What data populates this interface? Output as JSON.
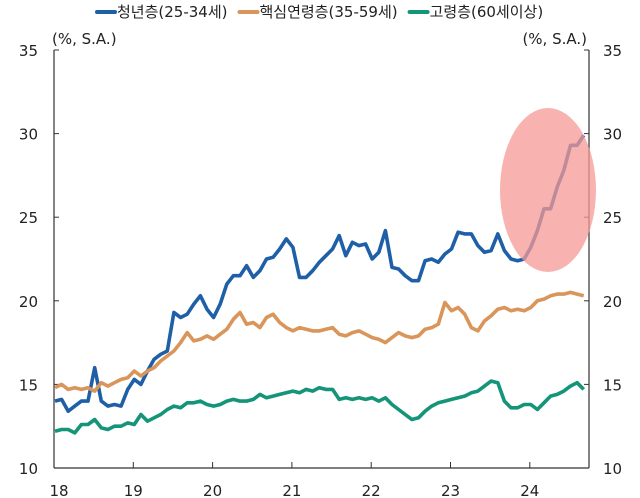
{
  "chart_data": {
    "type": "line",
    "title": "",
    "ylabel_left": "(%, S.A.)",
    "ylabel_right": "(%, S.A.)",
    "ylim": [
      10,
      35
    ],
    "yticks": [
      "10",
      "15",
      "20",
      "25",
      "30",
      "35"
    ],
    "xticks": [
      "18",
      "19",
      "20",
      "21",
      "22",
      "23",
      "24"
    ],
    "x_start": "2018-01",
    "x_end": "2024-09",
    "frequency": "monthly",
    "legend_position": "top",
    "grid": false,
    "series": [
      {
        "name": "청년층(25-34세)",
        "color": "#1f5fa8",
        "values": [
          14.0,
          14.1,
          13.4,
          13.7,
          14.0,
          14.0,
          16.0,
          14.0,
          13.7,
          13.8,
          13.7,
          14.7,
          15.3,
          15.0,
          15.8,
          16.5,
          16.8,
          17.0,
          19.3,
          19.0,
          19.2,
          19.8,
          20.3,
          19.5,
          19.0,
          19.8,
          21.0,
          21.5,
          21.5,
          22.1,
          21.4,
          21.8,
          22.5,
          22.6,
          23.1,
          23.7,
          23.2,
          21.4,
          21.4,
          21.8,
          22.3,
          22.7,
          23.1,
          23.9,
          22.7,
          23.5,
          23.3,
          23.4,
          22.5,
          22.9,
          24.2,
          22.0,
          21.9,
          21.5,
          21.2,
          21.2,
          22.4,
          22.5,
          22.3,
          22.8,
          23.1,
          24.1,
          24.0,
          24.0,
          23.3,
          22.9,
          23.0,
          24.0,
          23.0,
          22.5,
          22.4,
          22.5,
          23.2,
          24.2,
          25.5,
          25.5,
          26.8,
          27.8,
          29.3,
          29.3,
          29.9
        ]
      },
      {
        "name": "핵심연령층(35-59세)",
        "color": "#d9955a",
        "values": [
          14.8,
          15.0,
          14.7,
          14.8,
          14.7,
          14.8,
          14.6,
          15.1,
          14.9,
          15.1,
          15.3,
          15.4,
          15.8,
          15.5,
          15.8,
          16.0,
          16.4,
          16.7,
          17.0,
          17.5,
          18.1,
          17.6,
          17.7,
          17.9,
          17.7,
          18.0,
          18.3,
          18.9,
          19.3,
          18.6,
          18.7,
          18.4,
          19.0,
          19.2,
          18.7,
          18.4,
          18.2,
          18.4,
          18.3,
          18.2,
          18.2,
          18.3,
          18.4,
          18.0,
          17.9,
          18.1,
          18.2,
          18.0,
          17.8,
          17.7,
          17.5,
          17.8,
          18.1,
          17.9,
          17.8,
          17.9,
          18.3,
          18.4,
          18.6,
          19.9,
          19.4,
          19.6,
          19.2,
          18.4,
          18.2,
          18.8,
          19.1,
          19.5,
          19.6,
          19.4,
          19.5,
          19.4,
          19.6,
          20.0,
          20.1,
          20.3,
          20.4,
          20.4,
          20.5,
          20.4,
          20.3
        ]
      },
      {
        "name": "고령층(60세이상)",
        "color": "#149479",
        "values": [
          12.2,
          12.3,
          12.3,
          12.1,
          12.6,
          12.6,
          12.9,
          12.4,
          12.3,
          12.5,
          12.5,
          12.7,
          12.6,
          13.2,
          12.8,
          13.0,
          13.2,
          13.5,
          13.7,
          13.6,
          13.9,
          13.9,
          14.0,
          13.8,
          13.7,
          13.8,
          14.0,
          14.1,
          14.0,
          14.0,
          14.1,
          14.4,
          14.2,
          14.3,
          14.4,
          14.5,
          14.6,
          14.5,
          14.7,
          14.6,
          14.8,
          14.7,
          14.7,
          14.1,
          14.2,
          14.1,
          14.2,
          14.1,
          14.2,
          14.0,
          14.2,
          13.8,
          13.5,
          13.2,
          12.9,
          13.0,
          13.4,
          13.7,
          13.9,
          14.0,
          14.1,
          14.2,
          14.3,
          14.5,
          14.6,
          14.9,
          15.2,
          15.1,
          14.0,
          13.6,
          13.6,
          13.8,
          13.8,
          13.5,
          13.9,
          14.3,
          14.4,
          14.6,
          14.9,
          15.1,
          14.7
        ]
      }
    ],
    "annotation": {
      "shape": "ellipse",
      "color": "#f59a95",
      "highlights": "청년층(25-34세) 2024"
    }
  }
}
